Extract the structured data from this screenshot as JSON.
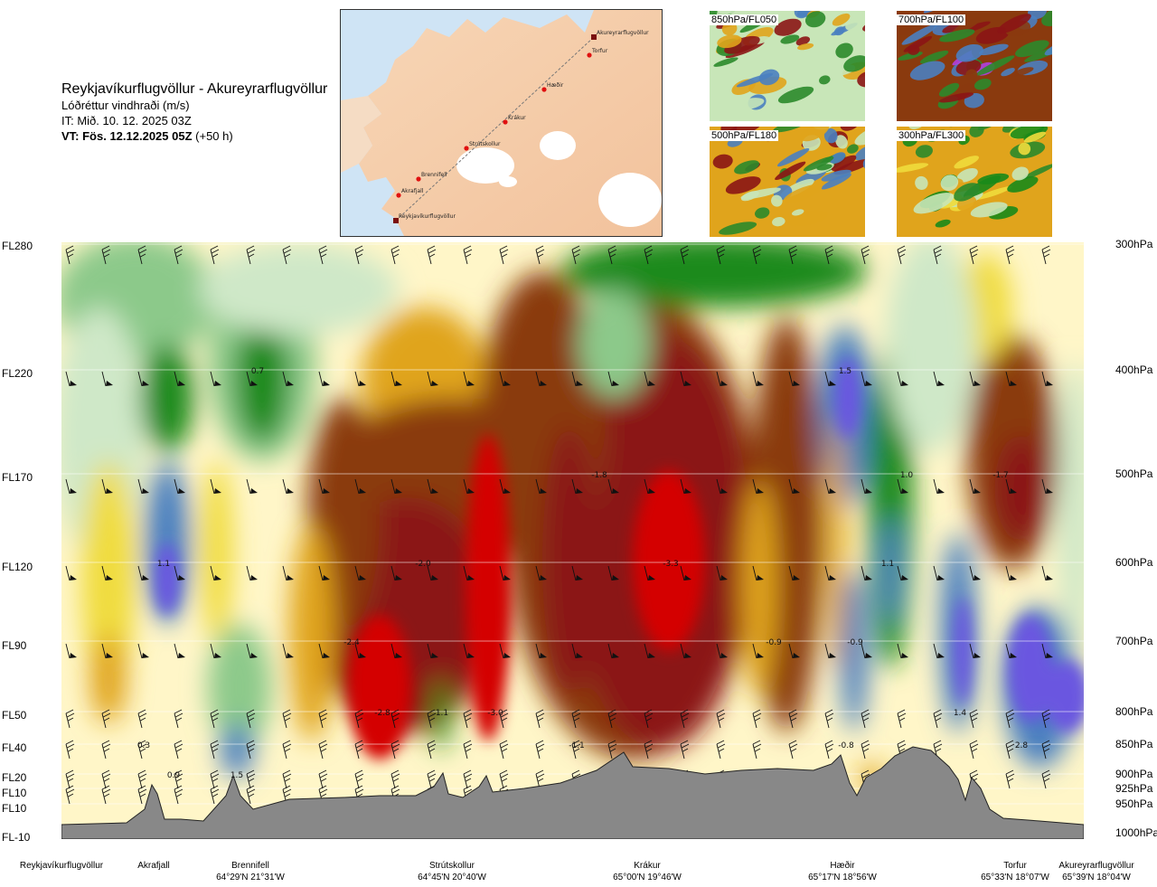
{
  "header": {
    "route": "Reykjavíkurflugvöllur - Akureyrarflugvöllur",
    "parameter": "Lóðréttur vindhraði (m/s)",
    "issue_time": "IT: Mið. 10. 12. 2025 03Z",
    "valid_time_bold": "VT: Fös. 12.12.2025 05Z",
    "valid_time_suffix": " (+50 h)"
  },
  "route_map": {
    "points": [
      {
        "name": "Akureyrarflugvöllur"
      },
      {
        "name": "Torfur"
      },
      {
        "name": "Hæðir"
      },
      {
        "name": "Krákur"
      },
      {
        "name": "Strútskollur"
      },
      {
        "name": "Brennifell"
      },
      {
        "name": "Akrafjall"
      },
      {
        "name": "Reykjavíkurflugvöllur"
      }
    ]
  },
  "thumbnails": [
    {
      "label": "850hPa/FL050"
    },
    {
      "label": "700hPa/FL100"
    },
    {
      "label": "500hPa/FL180"
    },
    {
      "label": "300hPa/FL300"
    }
  ],
  "colors": {
    "terrain": "#888888",
    "down_strong": "#d40000",
    "down_mid": "#8b1515",
    "down_low": "#8a3a0e",
    "neutral": "#fff6c8",
    "up_low": "#1a8a1a",
    "up_mid": "#4a7fc0",
    "up_strong": "#6b57e0"
  },
  "chart_data": {
    "type": "heatmap",
    "title": "Lóðréttur vindhraði (m/s)",
    "flight_levels": [
      "FL280",
      "FL220",
      "FL170",
      "FL120",
      "FL90",
      "FL50",
      "FL40",
      "FL20",
      "FL10",
      "FL10",
      "FL-10"
    ],
    "pressure_levels": [
      "300hPa",
      "400hPa",
      "500hPa",
      "600hPa",
      "700hPa",
      "800hPa",
      "850hPa",
      "900hPa",
      "925hPa",
      "950hPa",
      "1000hPa"
    ],
    "locations": [
      {
        "name": "Reykjavíkurflugvöllur",
        "coord": ""
      },
      {
        "name": "Akrafjall",
        "coord": ""
      },
      {
        "name": "Brennifell",
        "coord": "64°29'N 21°31'W"
      },
      {
        "name": "Strútskollur",
        "coord": "64°45'N 20°40'W"
      },
      {
        "name": "Krákur",
        "coord": "65°00'N 19°46'W"
      },
      {
        "name": "Hæðir",
        "coord": "65°17'N 18°56'W"
      },
      {
        "name": "Torfur",
        "coord": "65°33'N 18°07'W"
      },
      {
        "name": "Akureyrarflugvöllur",
        "coord": "65°39'N 18°04'W"
      }
    ],
    "value_labels": [
      {
        "text": "0.7",
        "level": "400hPa",
        "near": "Brennifell"
      },
      {
        "text": "1.5",
        "level": "400hPa",
        "near": "Hæðir"
      },
      {
        "text": "-1.8",
        "level": "500hPa",
        "near": "Krákur"
      },
      {
        "text": "1.0",
        "level": "500hPa",
        "near": "Hæðir"
      },
      {
        "text": "-1.7",
        "level": "500hPa",
        "near": "Torfur"
      },
      {
        "text": "1.1",
        "level": "600hPa",
        "near": "Akrafjall"
      },
      {
        "text": "-2.0",
        "level": "600hPa",
        "near": "Strútskollur"
      },
      {
        "text": "-3.3",
        "level": "600hPa",
        "near": "Krákur"
      },
      {
        "text": "1.1",
        "level": "600hPa",
        "near": "Hæðir"
      },
      {
        "text": "-2.4",
        "level": "700hPa",
        "near": "Brennifell"
      },
      {
        "text": "-0.9",
        "level": "700hPa",
        "near": "Krákur"
      },
      {
        "text": "-0.9",
        "level": "700hPa",
        "near": "Hæðir"
      },
      {
        "text": "-2.8",
        "level": "800hPa",
        "near": "Brennifell"
      },
      {
        "text": "1.1",
        "level": "800hPa",
        "near": "Strútskollur"
      },
      {
        "text": "-3.0",
        "level": "800hPa",
        "near": "Strútskollur"
      },
      {
        "text": "1.4",
        "level": "800hPa",
        "near": "Torfur"
      },
      {
        "text": "0.3",
        "level": "850hPa",
        "near": "Akrafjall"
      },
      {
        "text": "-1.1",
        "level": "850hPa",
        "near": "Krákur"
      },
      {
        "text": "-0.8",
        "level": "850hPa",
        "near": "Hæðir"
      },
      {
        "text": "2.8",
        "level": "850hPa",
        "near": "Torfur"
      },
      {
        "text": "0.9",
        "level": "900hPa",
        "near": "Akrafjall"
      },
      {
        "text": "1.5",
        "level": "900hPa",
        "near": "Brennifell"
      }
    ]
  }
}
